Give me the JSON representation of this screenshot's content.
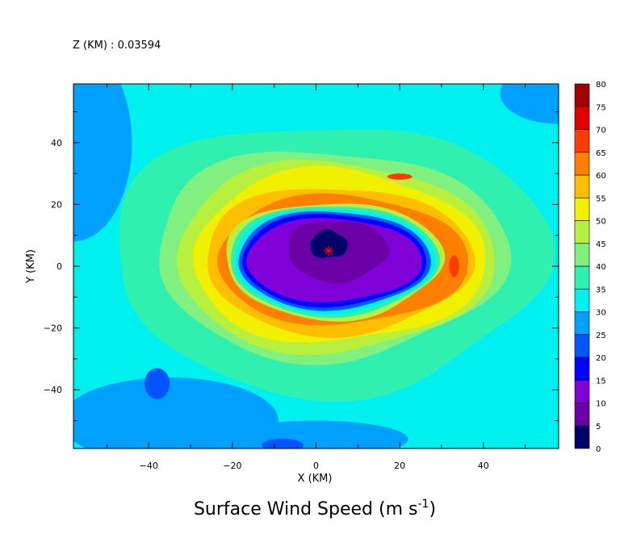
{
  "chart_data": {
    "type": "heatmap",
    "subtype": "filled-contour",
    "header_label": "Z (KM) : 0.03594",
    "title_main": "Surface Wind Speed (m s",
    "title_sup": "-1",
    "title_end": ")",
    "xlabel": "X (KM)",
    "ylabel": "Y (KM)",
    "xlim": [
      -58,
      58
    ],
    "ylim": [
      -59,
      59
    ],
    "x_ticks": [
      -40,
      -20,
      0,
      20,
      40
    ],
    "y_ticks": [
      -40,
      -20,
      0,
      20,
      40
    ],
    "x_tick_labels": [
      "−40",
      "−20",
      "0",
      "20",
      "40"
    ],
    "y_tick_labels": [
      "−40",
      "−20",
      "0",
      "20",
      "40"
    ],
    "grid": false,
    "colorbar": {
      "position": "right",
      "levels": [
        0,
        5,
        10,
        15,
        20,
        25,
        30,
        35,
        40,
        45,
        50,
        55,
        60,
        65,
        70,
        75,
        80
      ],
      "level_labels": [
        "0",
        "5",
        "10",
        "15",
        "20",
        "25",
        "30",
        "35",
        "40",
        "45",
        "50",
        "55",
        "60",
        "65",
        "70",
        "75",
        "80"
      ],
      "colors": [
        "#00006b",
        "#6a00a6",
        "#8000d8",
        "#0000ff",
        "#0055ff",
        "#00a0ff",
        "#00f0f0",
        "#30f0b0",
        "#80f080",
        "#b8f040",
        "#f0f000",
        "#ffbf00",
        "#ff7f00",
        "#ff3c00",
        "#e00000",
        "#a00000"
      ]
    },
    "storm_center": {
      "x": 3,
      "y": 5,
      "marker": "asterisk",
      "color": "#ff0000"
    },
    "features": {
      "eye_max_radius_km": 42,
      "peak_wind_ms": 70,
      "eye_min_wind_ms": 0
    }
  }
}
